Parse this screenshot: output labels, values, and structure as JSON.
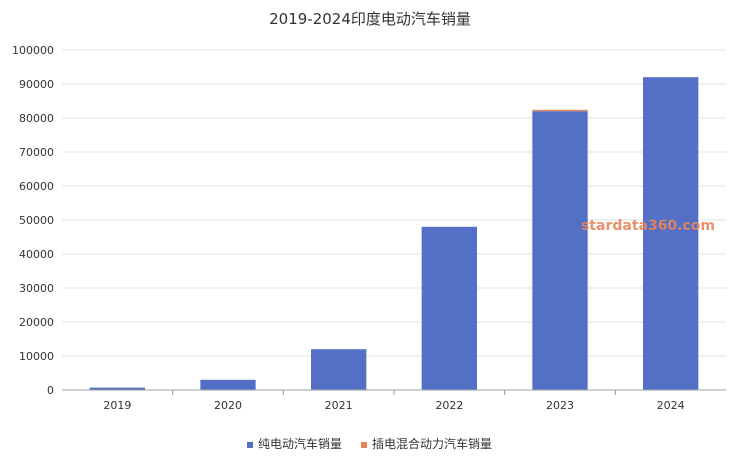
{
  "chart_data": {
    "type": "bar",
    "stacked": true,
    "title": "2019-2024印度电动汽车销量",
    "xlabel": "",
    "ylabel": "",
    "categories": [
      "2019",
      "2020",
      "2021",
      "2022",
      "2023",
      "2024"
    ],
    "series": [
      {
        "name": "纯电动汽车销量",
        "color": "#5470c6",
        "values": [
          700,
          3000,
          12000,
          48000,
          82000,
          92000
        ]
      },
      {
        "name": "插电混合动力汽车销量",
        "color": "#e8845a",
        "values": [
          0,
          0,
          0,
          0,
          400,
          0
        ]
      }
    ],
    "ylim": [
      0,
      100000
    ],
    "yticks": [
      0,
      10000,
      20000,
      30000,
      40000,
      50000,
      60000,
      70000,
      80000,
      90000,
      100000
    ],
    "grid": true,
    "legend_position": "bottom-center"
  },
  "watermark": "stardata360.com"
}
